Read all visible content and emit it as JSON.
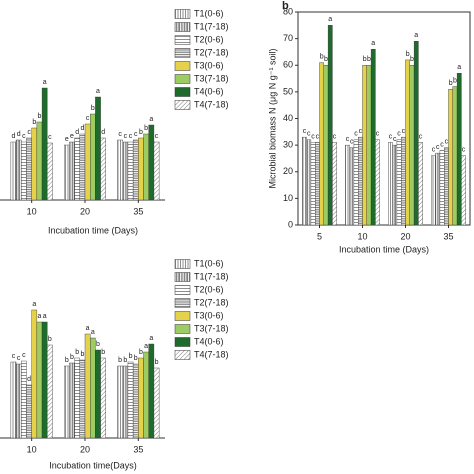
{
  "chart_data": [
    {
      "type": "bar",
      "x_label": "Incubation time (Days)",
      "categories": [
        "10",
        "20",
        "35"
      ],
      "ylim": [
        0,
        200
      ],
      "series": [
        {
          "name": "T1(0-6)",
          "color": "#ffffff",
          "pattern": "vertical",
          "values": [
            58,
            55,
            60
          ],
          "letters": [
            "d",
            "e",
            "c"
          ]
        },
        {
          "name": "T1(7-18)",
          "color": "#ffffff",
          "pattern": "vertical-dense",
          "values": [
            60,
            58,
            58
          ],
          "letters": [
            "d",
            "e",
            "c"
          ]
        },
        {
          "name": "T2(0-6)",
          "color": "#ffffff",
          "pattern": "horizontal",
          "values": [
            58,
            62,
            58
          ],
          "letters": [
            "c",
            "d",
            "c"
          ]
        },
        {
          "name": "T2(7-18)",
          "color": "#ffffff",
          "pattern": "horizontal-dense",
          "values": [
            62,
            66,
            60
          ],
          "letters": [
            "c",
            "d",
            "c"
          ]
        },
        {
          "name": "T3(0-6)",
          "color": "#e6d24a",
          "pattern": "solid",
          "values": [
            72,
            76,
            62
          ],
          "letters": [
            "b",
            "c",
            "b"
          ]
        },
        {
          "name": "T3(7-18)",
          "color": "#9dcc63",
          "pattern": "solid",
          "values": [
            78,
            86,
            66
          ],
          "letters": [
            "b",
            "b",
            "b"
          ]
        },
        {
          "name": "T4(0-6)",
          "color": "#1f6b2b",
          "pattern": "solid",
          "values": [
            112,
            103,
            75
          ],
          "letters": [
            "a",
            "a",
            "a"
          ]
        },
        {
          "name": "T4(7-18)",
          "color": "#ffffff",
          "pattern": "diagonal",
          "values": [
            57,
            62,
            58
          ],
          "letters": [
            "c",
            "d",
            "c"
          ]
        }
      ]
    },
    {
      "type": "bar",
      "panel_label": "b",
      "y_label": "Microbial biomass N (μg N g⁻¹ soil)",
      "x_label": "Incubation time (Days)",
      "categories": [
        "5",
        "10",
        "20",
        "35"
      ],
      "ylim": [
        0,
        80
      ],
      "yticks": [
        0,
        10,
        20,
        30,
        40,
        50,
        60,
        70,
        80
      ],
      "series": [
        {
          "name": "T1(0-6)",
          "color": "#ffffff",
          "pattern": "vertical",
          "values": [
            33,
            30,
            31,
            26
          ],
          "letters": [
            "c",
            "c",
            "c",
            "c"
          ]
        },
        {
          "name": "T1(7-18)",
          "color": "#ffffff",
          "pattern": "vertical-dense",
          "values": [
            32,
            29,
            30,
            27
          ],
          "letters": [
            "c",
            "c",
            "c",
            "c"
          ]
        },
        {
          "name": "T2(0-6)",
          "color": "#ffffff",
          "pattern": "horizontal",
          "values": [
            31,
            32,
            32,
            28
          ],
          "letters": [
            "c",
            "c",
            "c",
            "c"
          ]
        },
        {
          "name": "T2(7-18)",
          "color": "#ffffff",
          "pattern": "horizontal-dense",
          "values": [
            31,
            33,
            33,
            29
          ],
          "letters": [
            "c",
            "c",
            "c",
            "c"
          ]
        },
        {
          "name": "T3(0-6)",
          "color": "#e6d24a",
          "pattern": "solid",
          "values": [
            61,
            60,
            62,
            51
          ],
          "letters": [
            "b",
            "b",
            "b",
            "b"
          ]
        },
        {
          "name": "T3(7-18)",
          "color": "#9dcc63",
          "pattern": "solid",
          "values": [
            60,
            60,
            60,
            52
          ],
          "letters": [
            "b",
            "b",
            "b",
            "b"
          ]
        },
        {
          "name": "T4(0-6)",
          "color": "#1f6b2b",
          "pattern": "solid",
          "values": [
            75,
            66,
            69,
            57
          ],
          "letters": [
            "a",
            "a",
            "a",
            "a"
          ]
        },
        {
          "name": "T4(7-18)",
          "color": "#ffffff",
          "pattern": "diagonal",
          "values": [
            31,
            32,
            31,
            26
          ],
          "letters": [
            "c",
            "c",
            "c",
            "c"
          ]
        }
      ]
    },
    {
      "type": "bar",
      "x_label": "Incubation time(Days)",
      "categories": [
        "10",
        "20",
        "35"
      ],
      "ylim": [
        0,
        175
      ],
      "series": [
        {
          "name": "T1(0-6)",
          "color": "#ffffff",
          "pattern": "vertical",
          "values": [
            76,
            72,
            72
          ],
          "letters": [
            "c",
            "b",
            "b"
          ]
        },
        {
          "name": "T1(7-18)",
          "color": "#ffffff",
          "pattern": "vertical-dense",
          "values": [
            74,
            75,
            72
          ],
          "letters": [
            "c",
            "b",
            "b"
          ]
        },
        {
          "name": "T2(0-6)",
          "color": "#ffffff",
          "pattern": "horizontal",
          "values": [
            77,
            80,
            76
          ],
          "letters": [
            "c",
            "b",
            "b"
          ]
        },
        {
          "name": "T2(7-18)",
          "color": "#ffffff",
          "pattern": "horizontal-dense",
          "values": [
            53,
            78,
            74
          ],
          "letters": [
            "d",
            "b",
            "b"
          ]
        },
        {
          "name": "T3(0-6)",
          "color": "#e6d24a",
          "pattern": "solid",
          "values": [
            128,
            104,
            80
          ],
          "letters": [
            "a",
            "a",
            "b"
          ]
        },
        {
          "name": "T3(7-18)",
          "color": "#9dcc63",
          "pattern": "solid",
          "values": [
            116,
            100,
            86
          ],
          "letters": [
            "a",
            "a",
            "a"
          ]
        },
        {
          "name": "T4(0-6)",
          "color": "#1f6b2b",
          "pattern": "solid",
          "values": [
            116,
            88,
            94
          ],
          "letters": [
            "a",
            "b",
            "a"
          ]
        },
        {
          "name": "T4(7-18)",
          "color": "#ffffff",
          "pattern": "diagonal",
          "values": [
            93,
            80,
            70
          ],
          "letters": [
            "b",
            "b",
            "b"
          ]
        }
      ]
    }
  ]
}
